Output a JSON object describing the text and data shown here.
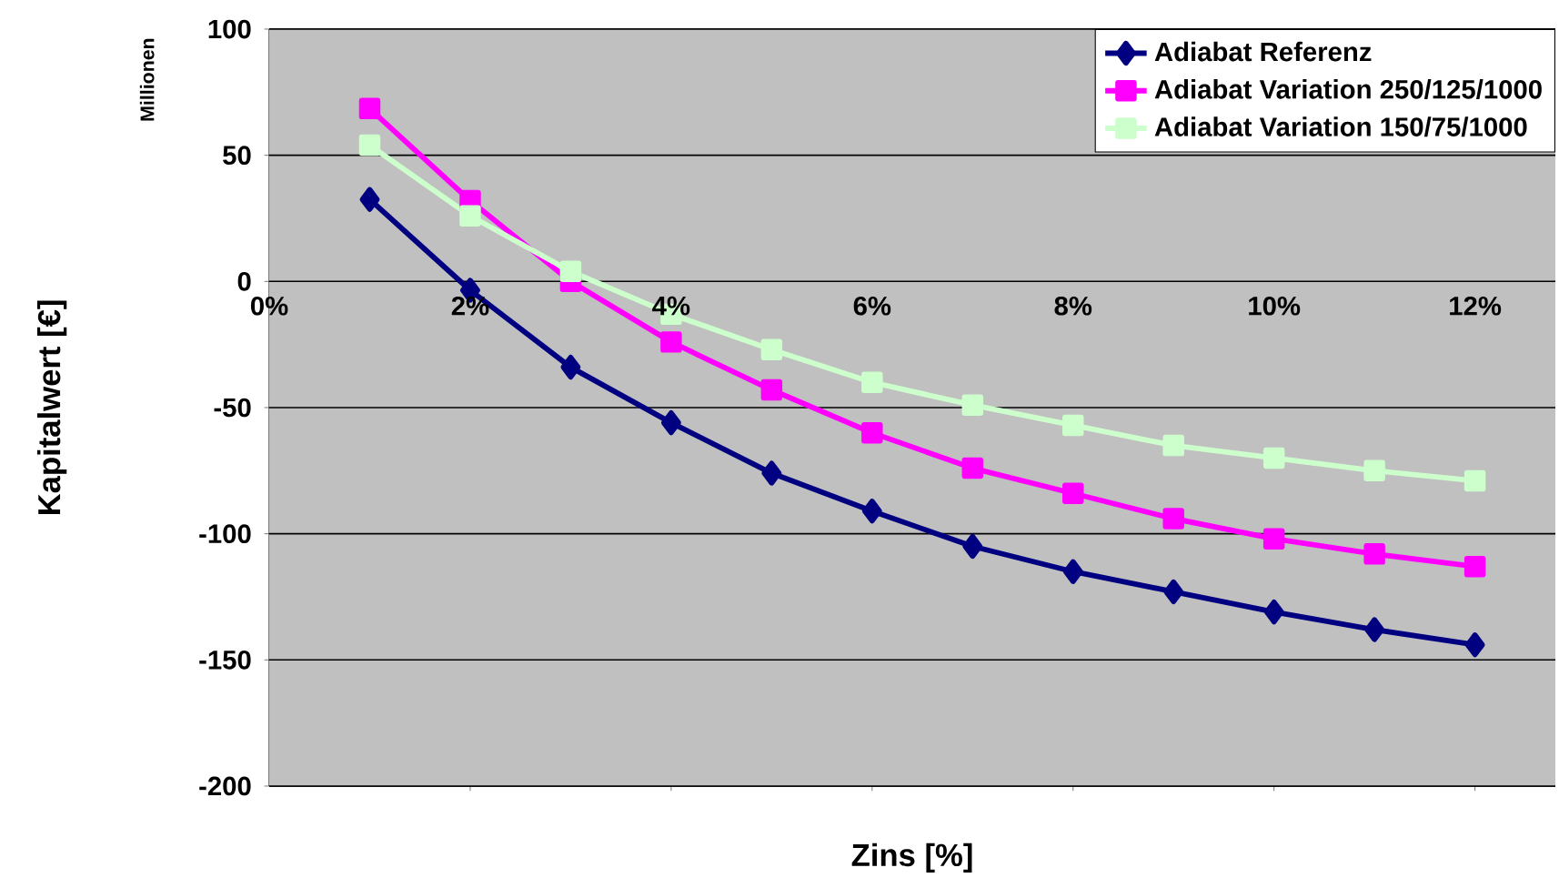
{
  "chart_data": {
    "type": "line",
    "xlabel": "Zins [%]",
    "ylabel": "Kapitalwert [€]",
    "annotations": [
      "Millionen"
    ],
    "x": [
      1,
      2,
      3,
      4,
      5,
      6,
      7,
      8,
      9,
      10,
      11,
      12
    ],
    "series": [
      {
        "name": "Adiabat Referenz",
        "color": "#000080",
        "marker": "diamond",
        "values": [
          32.5,
          -3.5,
          -34,
          -56,
          -76,
          -91,
          -105,
          -115,
          -123,
          -131,
          -138,
          -144
        ]
      },
      {
        "name": "Adiabat Variation 250/125/1000",
        "color": "#ff00ff",
        "marker": "square",
        "values": [
          68.5,
          32,
          0,
          -24,
          -43,
          -60,
          -74,
          -84,
          -94,
          -102,
          -108,
          -113
        ]
      },
      {
        "name": "Adiabat Variation 150/75/1000",
        "color": "#ccffcc",
        "marker": "square",
        "values": [
          54,
          26,
          4,
          -13,
          -27,
          -40,
          -49,
          -57,
          -65,
          -70,
          -75,
          -79
        ]
      }
    ],
    "xlim": [
      0,
      12.8
    ],
    "ylim": [
      -200,
      100
    ],
    "xticks": [
      {
        "value": 0,
        "label": "0%"
      },
      {
        "value": 2,
        "label": "2%"
      },
      {
        "value": 4,
        "label": "4%"
      },
      {
        "value": 6,
        "label": "6%"
      },
      {
        "value": 8,
        "label": "8%"
      },
      {
        "value": 10,
        "label": "10%"
      },
      {
        "value": 12,
        "label": "12%"
      }
    ],
    "yticks": [
      -200,
      -150,
      -100,
      -50,
      0,
      50,
      100
    ],
    "grid": "y",
    "legend": "top right",
    "line_style": "solid"
  }
}
